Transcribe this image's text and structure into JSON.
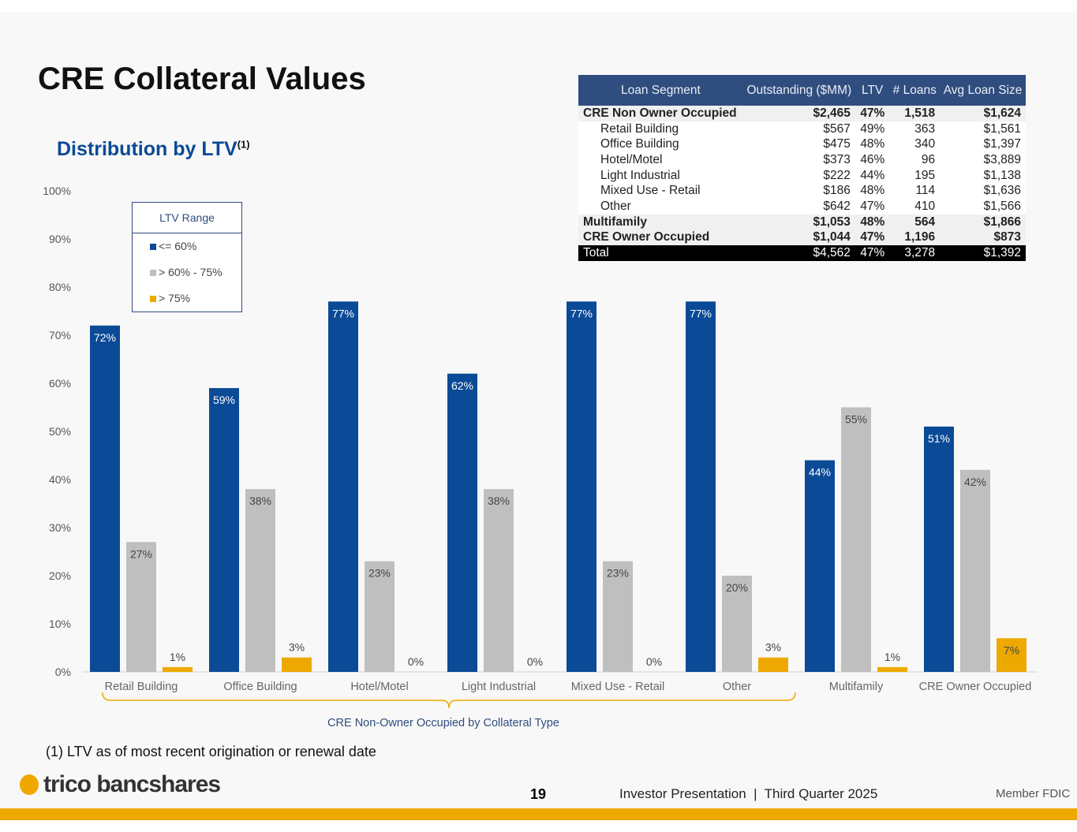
{
  "title": "CRE Collateral Values",
  "subtitle": "Distribution by LTV",
  "subtitle_note": "(1)",
  "table": {
    "headers": [
      "Loan Segment",
      "Outstanding ($MM)",
      "LTV",
      "# Loans",
      "Avg Loan Size"
    ],
    "rows": [
      {
        "type": "b",
        "cells": [
          "CRE Non Owner Occupied",
          "$2,465",
          "47%",
          "1,518",
          "$1,624"
        ]
      },
      {
        "type": "s",
        "cells": [
          "Retail Building",
          "$567",
          "49%",
          "363",
          "$1,561"
        ]
      },
      {
        "type": "s",
        "cells": [
          "Office Building",
          "$475",
          "48%",
          "340",
          "$1,397"
        ]
      },
      {
        "type": "s",
        "cells": [
          "Hotel/Motel",
          "$373",
          "46%",
          "96",
          "$3,889"
        ]
      },
      {
        "type": "s",
        "cells": [
          "Light Industrial",
          "$222",
          "44%",
          "195",
          "$1,138"
        ]
      },
      {
        "type": "s",
        "cells": [
          "Mixed Use - Retail",
          "$186",
          "48%",
          "114",
          "$1,636"
        ]
      },
      {
        "type": "s",
        "cells": [
          "Other",
          "$642",
          "47%",
          "410",
          "$1,566"
        ]
      },
      {
        "type": "b",
        "cells": [
          "Multifamily",
          "$1,053",
          "48%",
          "564",
          "$1,866"
        ]
      },
      {
        "type": "b",
        "cells": [
          "CRE Owner Occupied",
          "$1,044",
          "47%",
          "1,196",
          "$873"
        ]
      },
      {
        "type": "t",
        "cells": [
          "Total",
          "$4,562",
          "47%",
          "3,278",
          "$1,392"
        ]
      }
    ]
  },
  "chart_data": {
    "type": "bar",
    "ylim": [
      0,
      100
    ],
    "yticks": [
      "0%",
      "10%",
      "20%",
      "30%",
      "40%",
      "50%",
      "60%",
      "70%",
      "80%",
      "90%",
      "100%"
    ],
    "categories": [
      "Retail Building",
      "Office Building",
      "Hotel/Motel",
      "Light Industrial",
      "Mixed Use - Retail",
      "Other",
      "Multifamily",
      "CRE Owner Occupied"
    ],
    "legend_title": "LTV Range",
    "legend_placement": "top-left",
    "bracket_label": "CRE Non-Owner Occupied by Collateral Type",
    "series": [
      {
        "name": "<= 60%",
        "color": "#0b4a96",
        "values": [
          72,
          59,
          77,
          62,
          77,
          77,
          44,
          51
        ]
      },
      {
        "name": "> 60% - 75%",
        "color": "#bfbfbf",
        "values": [
          27,
          38,
          23,
          38,
          23,
          20,
          55,
          42
        ]
      },
      {
        "name": "> 75%",
        "color": "#eda900",
        "values": [
          1,
          3,
          0,
          0,
          0,
          3,
          1,
          7
        ]
      }
    ]
  },
  "footnote": "(1) LTV as of most recent origination or renewal date",
  "footer": {
    "logo": "trico bancshares",
    "page": "19",
    "presentation": "Investor Presentation  |  Third Quarter 2025",
    "fdic": "Member FDIC"
  }
}
